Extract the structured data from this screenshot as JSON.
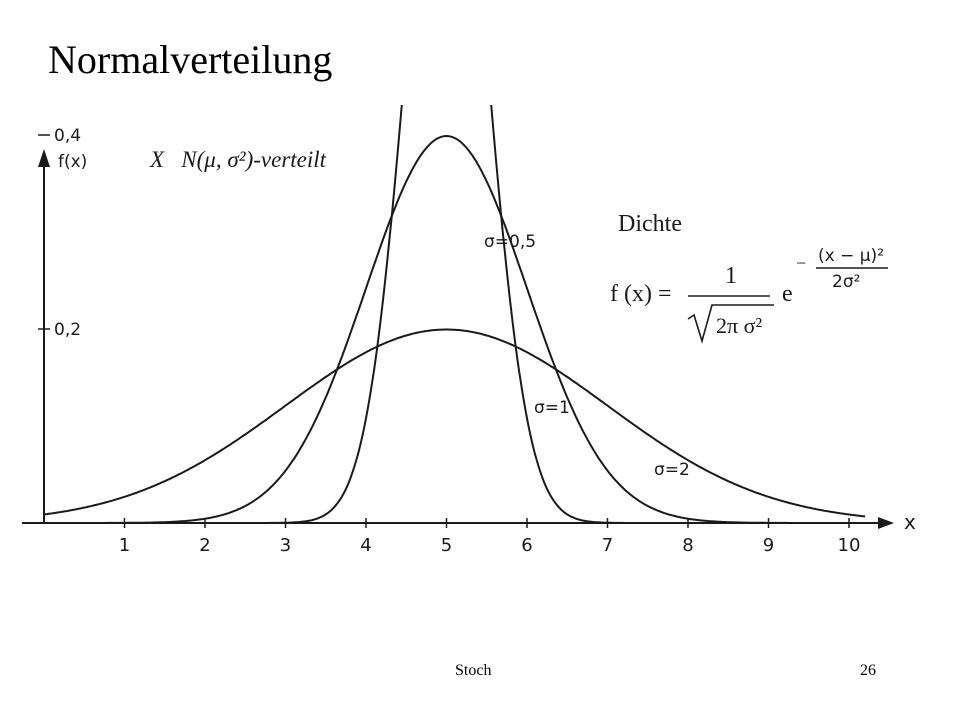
{
  "slide": {
    "title": "Normalverteilung",
    "footer_center": "Stoch",
    "page_number": "26"
  },
  "chart_data": {
    "type": "line",
    "title": "X   N(μ, σ²)-verteilt",
    "xlabel": "x",
    "ylabel": "f(x)",
    "xlim": [
      0,
      10.5
    ],
    "ylim": [
      0,
      0.82
    ],
    "x_ticks": [
      "1",
      "2",
      "3",
      "4",
      "5",
      "6",
      "7",
      "8",
      "9",
      "10"
    ],
    "y_ticks": [
      {
        "value": 0.2,
        "label": "0,2"
      },
      {
        "value": 0.4,
        "label": "0,4"
      }
    ],
    "mu": 5,
    "series": [
      {
        "name": "σ=0,5",
        "mu": 5,
        "sigma": 0.5
      },
      {
        "name": "σ=1",
        "mu": 5,
        "sigma": 1
      },
      {
        "name": "σ=2",
        "mu": 5,
        "sigma": 2
      }
    ],
    "grid": false,
    "annotation": {
      "heading": "Dichte",
      "formula_lhs": "f (x) =",
      "numerator": "1",
      "denominator": "2π σ²",
      "base": "e",
      "exp_sign": "−",
      "exp_numerator": "(x − μ)²",
      "exp_denominator": "2σ²"
    },
    "colors": {
      "ink": "#1a1a1a"
    }
  }
}
